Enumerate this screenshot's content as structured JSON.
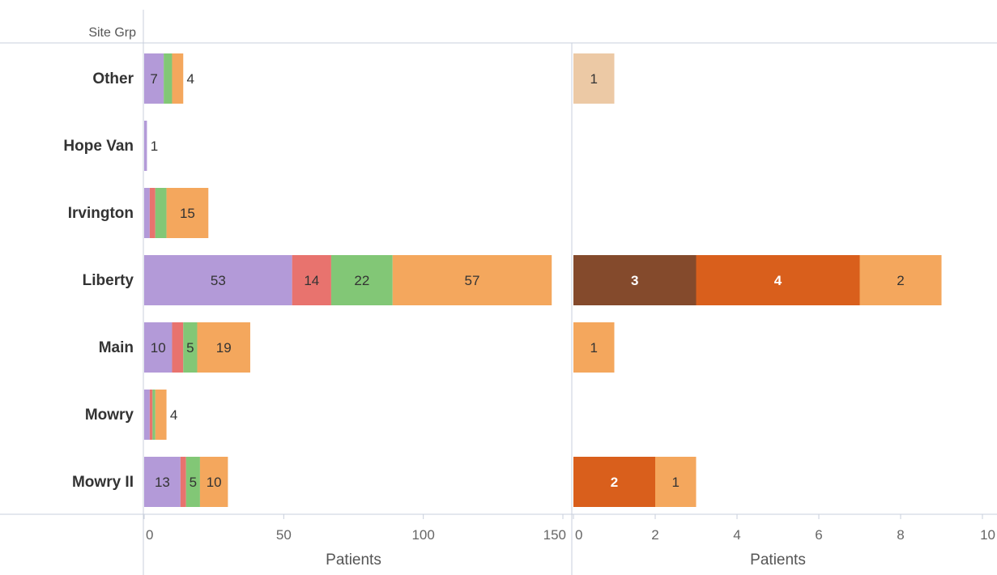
{
  "chart_data": {
    "type": "bar",
    "orientation": "horizontal",
    "stacked": true,
    "header_label": "Site Grp",
    "categories": [
      "Other",
      "Hope Van",
      "Irvington",
      "Liberty",
      "Main",
      "Mowry",
      "Mowry II"
    ],
    "panels": [
      {
        "xlabel": "Patients",
        "xlim": [
          0,
          150
        ],
        "ticks": [
          0,
          50,
          100,
          150
        ],
        "tick_labels": [
          "0",
          "50",
          "100",
          "150"
        ],
        "series": [
          {
            "color": "#b39ad8",
            "label_color": "#333333",
            "values": [
              7,
              1,
              2,
              53,
              10,
              2,
              13
            ],
            "labels": [
              "7",
              "1",
              "",
              "53",
              "10",
              "",
              "13"
            ]
          },
          {
            "color": "#e8736e",
            "label_color": "#333333",
            "values": [
              0,
              0,
              2,
              14,
              4,
              1,
              2
            ],
            "labels": [
              "",
              "",
              "",
              "14",
              "4",
              "",
              ""
            ]
          },
          {
            "color": "#82c776",
            "label_color": "#333333",
            "values": [
              3,
              0,
              4,
              22,
              5,
              1,
              5
            ],
            "labels": [
              "",
              "",
              "",
              "22",
              "5",
              "",
              "5"
            ]
          },
          {
            "color": "#f4a75d",
            "label_color": "#333333",
            "values": [
              4,
              0,
              15,
              57,
              19,
              4,
              10
            ],
            "labels": [
              "4",
              "",
              "15",
              "57",
              "19",
              "4",
              "10"
            ]
          }
        ]
      },
      {
        "xlabel": "Patients",
        "xlim": [
          0,
          10
        ],
        "ticks": [
          0,
          2,
          4,
          6,
          8,
          10
        ],
        "tick_labels": [
          "0",
          "2",
          "4",
          "6",
          "8",
          "10"
        ],
        "series": [
          {
            "color": "#844a2c",
            "label_color": "#ffffff",
            "values": [
              0,
              0,
              0,
              3,
              0,
              0,
              0
            ],
            "labels": [
              "",
              "",
              "",
              "3",
              "",
              "",
              ""
            ]
          },
          {
            "color": "#d95f1c",
            "label_color": "#ffffff",
            "values": [
              0,
              0,
              0,
              4,
              0,
              0,
              2
            ],
            "labels": [
              "",
              "",
              "",
              "4",
              "",
              "",
              "2"
            ]
          },
          {
            "color": "#f4a75d",
            "label_color": "#333333",
            "values": [
              0,
              0,
              0,
              2,
              1,
              0,
              1
            ],
            "labels": [
              "",
              "",
              "",
              "2",
              "1",
              "",
              "1"
            ]
          },
          {
            "color": "#ecc9a5",
            "label_color": "#333333",
            "values": [
              1,
              0,
              0,
              0,
              0,
              0,
              0
            ],
            "labels": [
              "1",
              "",
              "",
              "",
              "",
              "",
              ""
            ]
          }
        ]
      }
    ],
    "grid": false,
    "legend": "none"
  }
}
